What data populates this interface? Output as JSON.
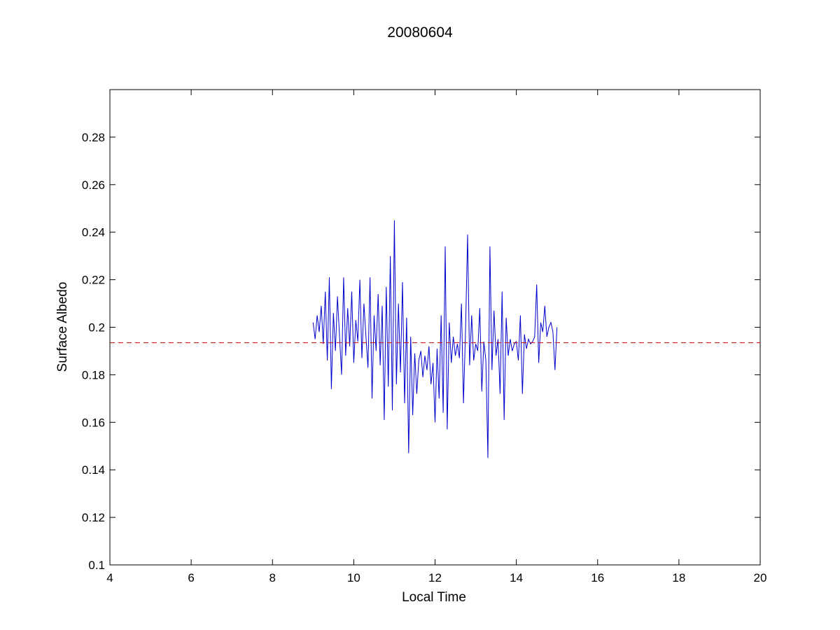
{
  "chart_data": {
    "type": "line",
    "title": "20080604",
    "xlabel": "Local Time",
    "ylabel": "Surface Albedo",
    "xlim": [
      4,
      20
    ],
    "ylim": [
      0.1,
      0.3
    ],
    "xticks": [
      4,
      6,
      8,
      10,
      12,
      14,
      16,
      18,
      20
    ],
    "xtick_labels": [
      "4",
      "6",
      "8",
      "10",
      "12",
      "14",
      "16",
      "18",
      "20"
    ],
    "yticks": [
      0.1,
      0.12,
      0.14,
      0.16,
      0.18,
      0.2,
      0.22,
      0.24,
      0.26,
      0.28
    ],
    "ytick_labels": [
      "0.1",
      "0.12",
      "0.14",
      "0.16",
      "0.18",
      "0.2",
      "0.22",
      "0.24",
      "0.26",
      "0.28"
    ],
    "grid": false,
    "legend": "none",
    "series": [
      {
        "color": "#0000cc",
        "style": "solid",
        "x": [
          9.0,
          9.05,
          9.1,
          9.15,
          9.2,
          9.25,
          9.3,
          9.35,
          9.4,
          9.45,
          9.5,
          9.55,
          9.6,
          9.65,
          9.7,
          9.75,
          9.8,
          9.85,
          9.9,
          9.95,
          10.0,
          10.05,
          10.1,
          10.15,
          10.2,
          10.25,
          10.3,
          10.35,
          10.4,
          10.45,
          10.5,
          10.55,
          10.6,
          10.65,
          10.7,
          10.75,
          10.8,
          10.85,
          10.9,
          10.95,
          11.0,
          11.05,
          11.1,
          11.15,
          11.2,
          11.25,
          11.3,
          11.35,
          11.4,
          11.45,
          11.5,
          11.55,
          11.6,
          11.65,
          11.7,
          11.75,
          11.8,
          11.85,
          11.9,
          11.95,
          12.0,
          12.05,
          12.1,
          12.15,
          12.2,
          12.25,
          12.3,
          12.35,
          12.4,
          12.45,
          12.5,
          12.55,
          12.6,
          12.65,
          12.7,
          12.75,
          12.8,
          12.85,
          12.9,
          12.95,
          13.0,
          13.05,
          13.1,
          13.15,
          13.2,
          13.25,
          13.3,
          13.35,
          13.4,
          13.45,
          13.5,
          13.55,
          13.6,
          13.65,
          13.7,
          13.75,
          13.8,
          13.85,
          13.9,
          13.95,
          14.0,
          14.05,
          14.1,
          14.15,
          14.2,
          14.25,
          14.3,
          14.35,
          14.4,
          14.45,
          14.5,
          14.55,
          14.6,
          14.65,
          14.7,
          14.75,
          14.8,
          14.85,
          14.9,
          14.95,
          15.0
        ],
        "y": [
          0.202,
          0.195,
          0.205,
          0.198,
          0.209,
          0.193,
          0.215,
          0.186,
          0.221,
          0.174,
          0.206,
          0.19,
          0.213,
          0.196,
          0.18,
          0.221,
          0.188,
          0.208,
          0.192,
          0.215,
          0.185,
          0.203,
          0.194,
          0.22,
          0.187,
          0.21,
          0.196,
          0.183,
          0.221,
          0.17,
          0.205,
          0.19,
          0.214,
          0.184,
          0.209,
          0.161,
          0.217,
          0.175,
          0.23,
          0.165,
          0.245,
          0.176,
          0.21,
          0.181,
          0.219,
          0.168,
          0.204,
          0.147,
          0.196,
          0.163,
          0.189,
          0.172,
          0.186,
          0.19,
          0.179,
          0.188,
          0.182,
          0.192,
          0.176,
          0.185,
          0.16,
          0.191,
          0.17,
          0.205,
          0.164,
          0.234,
          0.157,
          0.202,
          0.185,
          0.196,
          0.188,
          0.193,
          0.187,
          0.21,
          0.168,
          0.198,
          0.239,
          0.184,
          0.205,
          0.186,
          0.193,
          0.19,
          0.208,
          0.173,
          0.194,
          0.186,
          0.145,
          0.234,
          0.182,
          0.207,
          0.188,
          0.195,
          0.172,
          0.215,
          0.161,
          0.204,
          0.188,
          0.195,
          0.19,
          0.193,
          0.194,
          0.186,
          0.205,
          0.172,
          0.197,
          0.191,
          0.195,
          0.193,
          0.194,
          0.196,
          0.218,
          0.185,
          0.202,
          0.198,
          0.209,
          0.196,
          0.2,
          0.202,
          0.198,
          0.182,
          0.2
        ]
      },
      {
        "color": "#cc0000",
        "style": "dashed",
        "x": [
          4,
          20
        ],
        "y": [
          0.1935,
          0.1935
        ]
      }
    ]
  }
}
